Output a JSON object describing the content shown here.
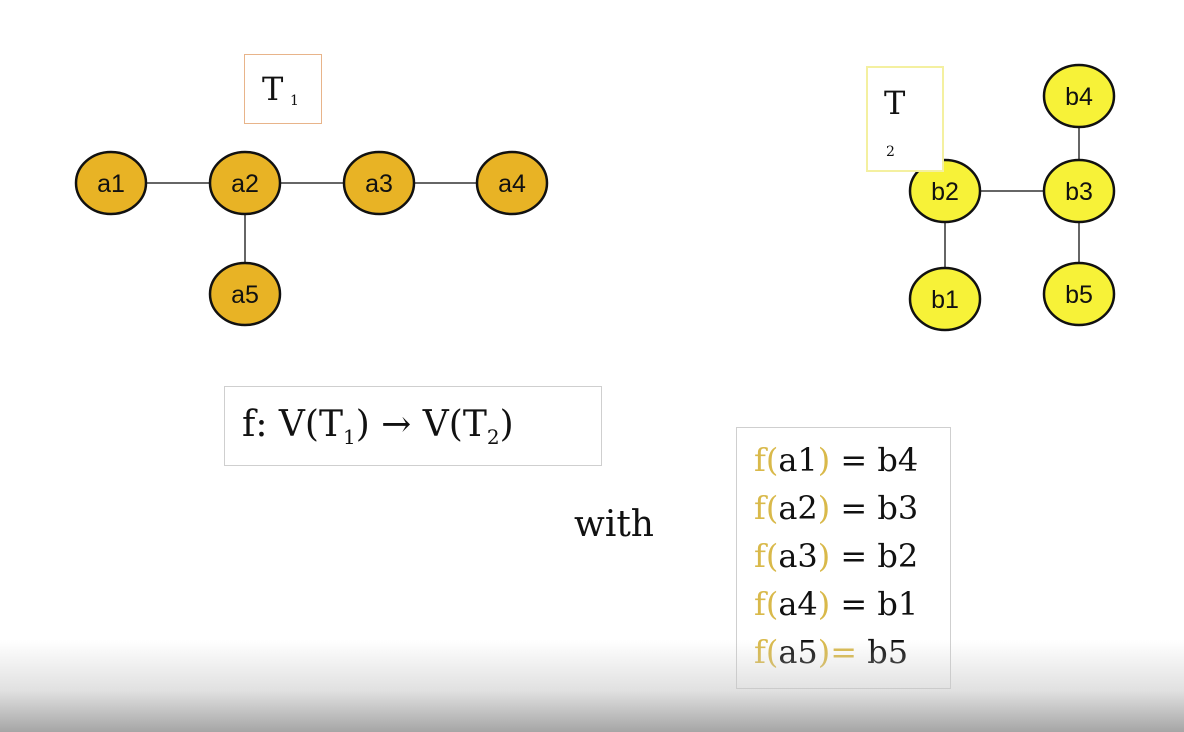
{
  "colors": {
    "tree1_node_fill": "#e8b325",
    "tree2_node_fill": "#f7f238",
    "node_stroke": "#111111",
    "edge": "#333333",
    "mapping_accent": "#d9b94a"
  },
  "tree1": {
    "title": "T",
    "subscript": "1",
    "nodes": [
      "a1",
      "a2",
      "a3",
      "a4",
      "a5"
    ],
    "edges": [
      [
        "a1",
        "a2"
      ],
      [
        "a2",
        "a3"
      ],
      [
        "a3",
        "a4"
      ],
      [
        "a2",
        "a5"
      ]
    ]
  },
  "tree2": {
    "title": "T",
    "subscript": "2",
    "nodes": [
      "b1",
      "b2",
      "b3",
      "b4",
      "b5"
    ],
    "edges": [
      [
        "b2",
        "b3"
      ],
      [
        "b2",
        "b1"
      ],
      [
        "b3",
        "b4"
      ],
      [
        "b3",
        "b5"
      ]
    ]
  },
  "function": {
    "prefix": "f: V(T",
    "sub1": "1",
    "middle": ") → V(T",
    "sub2": "2",
    "suffix": ")"
  },
  "with_label": "with",
  "mapping": [
    {
      "f": "f(",
      "arg": "a1",
      "close": ")",
      "eq": " = ",
      "value": "b4"
    },
    {
      "f": "f(",
      "arg": "a2",
      "close": ")",
      "eq": " = ",
      "value": "b3"
    },
    {
      "f": "f(",
      "arg": "a3",
      "close": ")",
      "eq": " = ",
      "value": "b2"
    },
    {
      "f": "f(",
      "arg": "a4",
      "close": ")",
      "eq": " = ",
      "value": "b1"
    },
    {
      "f": "f(",
      "arg": "a5",
      "close": ")",
      "eq": "= ",
      "value": "b5"
    }
  ]
}
